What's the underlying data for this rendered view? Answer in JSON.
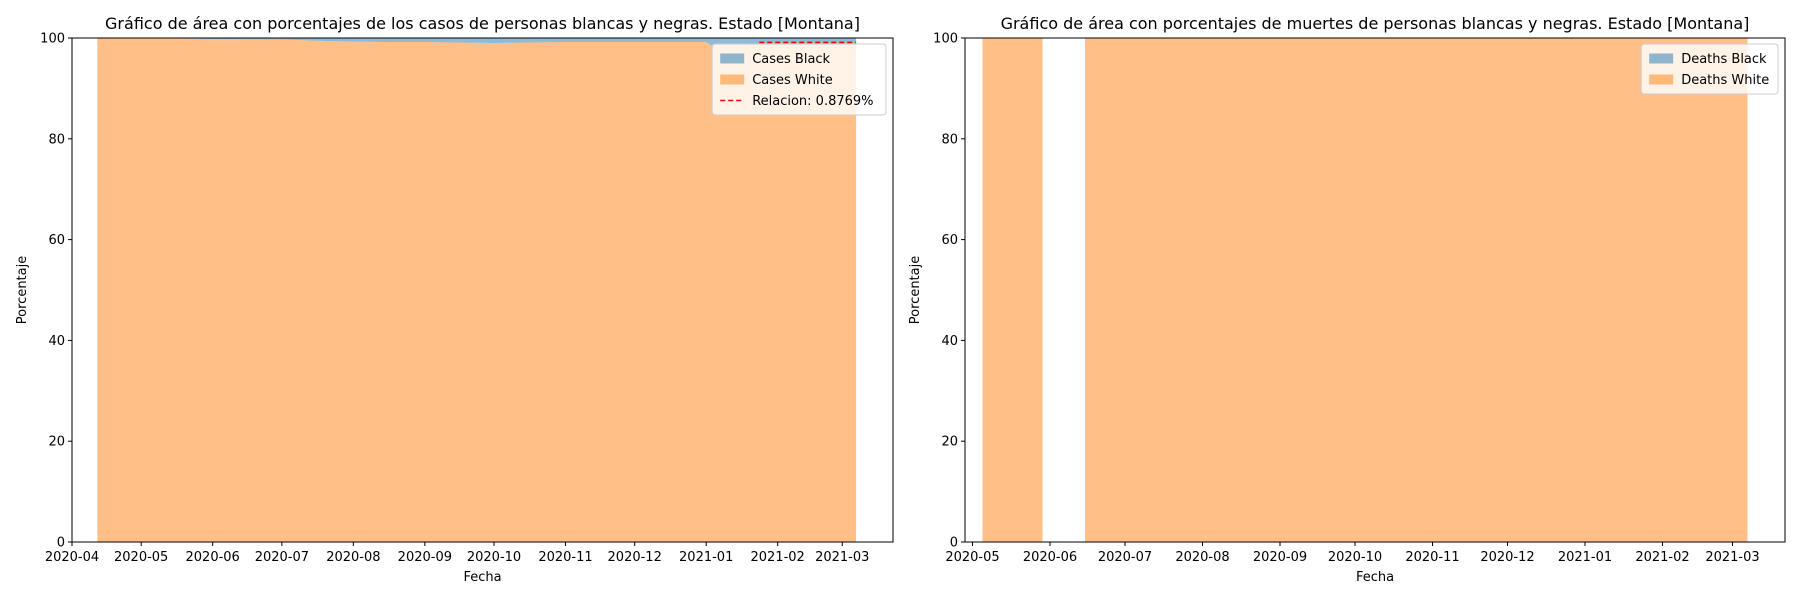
{
  "colors": {
    "black_series": "#1f77b4",
    "white_series": "#ff7f0e",
    "relacion_line": "#ff0000",
    "series_alpha": 0.5
  },
  "chart_data": [
    {
      "type": "area",
      "stacked": true,
      "title": "Gráfico de área con porcentajes de los casos de personas blancas y negras. Estado [Montana]",
      "xlabel": "Fecha",
      "ylabel": "Porcentaje",
      "xlim": [
        "2020-04-01",
        "2021-03-23"
      ],
      "ylim": [
        0,
        100
      ],
      "x_ticks": [
        "2020-04",
        "2020-05",
        "2020-06",
        "2020-07",
        "2020-08",
        "2020-09",
        "2020-10",
        "2020-11",
        "2020-12",
        "2021-01",
        "2021-02",
        "2021-03"
      ],
      "y_ticks": [
        0,
        20,
        40,
        60,
        80,
        100
      ],
      "grid": false,
      "legend": "top-right",
      "legend_entries": [
        "Cases Black",
        "Cases White",
        "Relacion: 0.8769%"
      ],
      "segments": [
        {
          "x": [
            "2020-04-12",
            "2020-05-01",
            "2020-06-01",
            "2020-07-01",
            "2020-07-20",
            "2020-08-01",
            "2020-08-15",
            "2020-09-01",
            "2020-09-15",
            "2020-10-01",
            "2020-10-15",
            "2020-11-01",
            "2020-11-15",
            "2020-12-01",
            "2020-12-15",
            "2021-01-01",
            "2021-01-03",
            "2021-01-15",
            "2021-02-01",
            "2021-02-15",
            "2021-03-07"
          ],
          "series": [
            {
              "name": "Cases White",
              "values": [
                100,
                100,
                99.8,
                99.7,
                99.4,
                99.3,
                99.2,
                99.2,
                99.1,
                99.0,
                99.1,
                99.2,
                99.2,
                99.2,
                99.2,
                99.2,
                98.6,
                98.6,
                98.7,
                98.8,
                98.9
              ]
            },
            {
              "name": "Cases Black",
              "values": [
                0,
                0,
                0.2,
                0.3,
                0.6,
                0.7,
                0.8,
                0.8,
                0.9,
                1.0,
                0.9,
                0.8,
                0.8,
                0.8,
                0.8,
                0.8,
                1.4,
                1.4,
                1.3,
                1.2,
                1.1
              ]
            }
          ]
        }
      ],
      "reference_lines": [
        {
          "name": "Relacion: 0.8769%",
          "y": 99.1231,
          "x_start": "2021-01-24",
          "x_end": "2021-03-07",
          "style": "dashed"
        }
      ]
    },
    {
      "type": "area",
      "stacked": true,
      "title": "Gráfico de área con porcentajes de muertes de personas blancas y negras. Estado [Montana]",
      "xlabel": "Fecha",
      "ylabel": "Porcentaje",
      "xlim": [
        "2020-04-28",
        "2021-03-22"
      ],
      "ylim": [
        0,
        100
      ],
      "x_ticks": [
        "2020-05",
        "2020-06",
        "2020-07",
        "2020-08",
        "2020-09",
        "2020-10",
        "2020-11",
        "2020-12",
        "2021-01",
        "2021-02",
        "2021-03"
      ],
      "y_ticks": [
        0,
        20,
        40,
        60,
        80,
        100
      ],
      "grid": false,
      "legend": "top-right",
      "legend_entries": [
        "Deaths Black",
        "Deaths White"
      ],
      "segments": [
        {
          "x": [
            "2020-05-05",
            "2020-05-29"
          ],
          "series": [
            {
              "name": "Deaths White",
              "values": [
                100,
                100
              ]
            },
            {
              "name": "Deaths Black",
              "values": [
                0,
                0
              ]
            }
          ]
        },
        {
          "x": [
            "2020-06-15",
            "2021-03-07"
          ],
          "series": [
            {
              "name": "Deaths White",
              "values": [
                100,
                100
              ]
            },
            {
              "name": "Deaths Black",
              "values": [
                0,
                0
              ]
            }
          ]
        }
      ]
    }
  ]
}
